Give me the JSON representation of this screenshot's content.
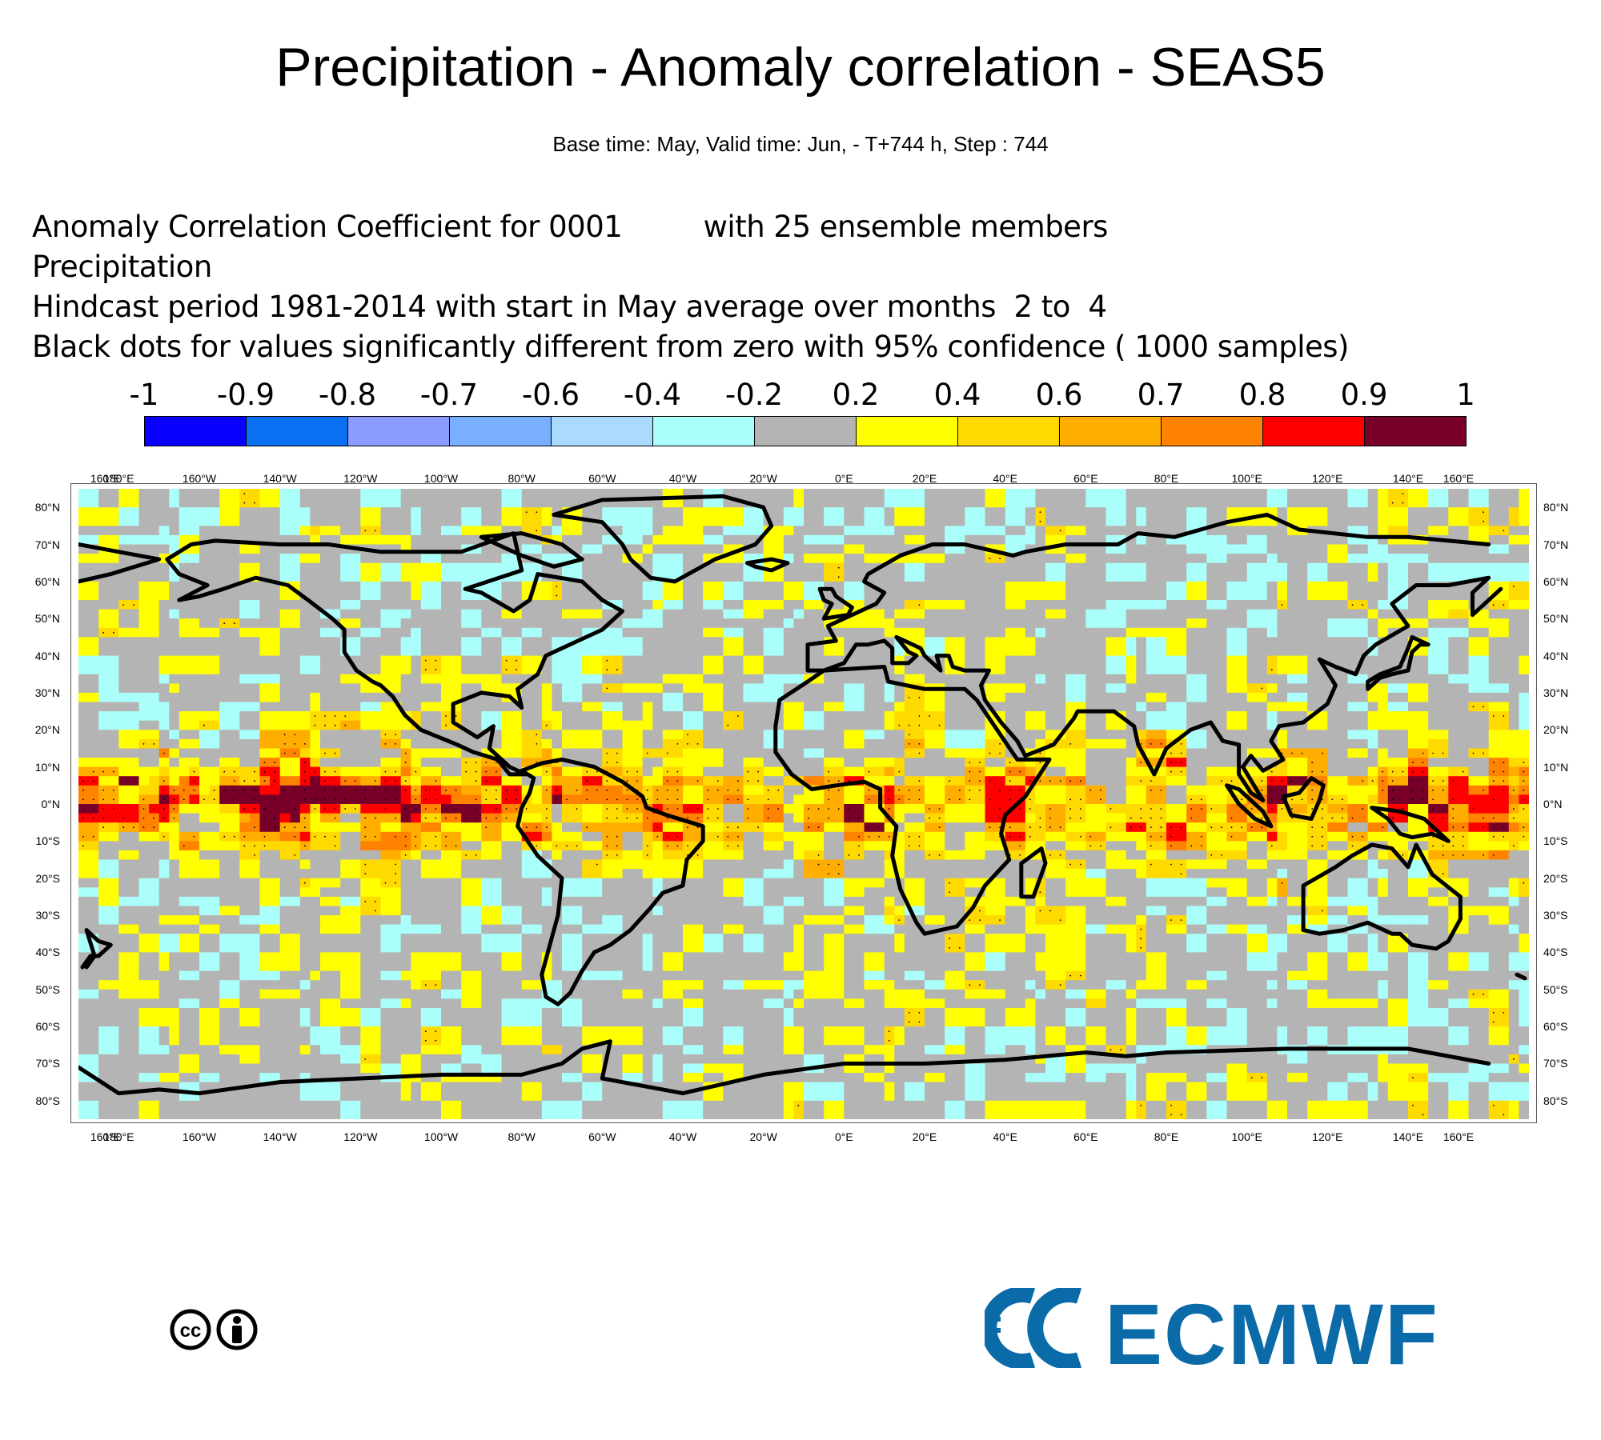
{
  "title": "Precipitation - Anomaly correlation - SEAS5",
  "subtitle": "Base time: May, Valid time: Jun, - T+744 h, Step : 744",
  "info_lines": [
    "Anomaly Correlation Coefficient for 0001         with 25 ensemble members",
    "Precipitation",
    "Hindcast period 1981-2014 with start in May average over months  2 to  4",
    "Black dots for values significantly different from zero with 95% confidence ( 1000 samples)"
  ],
  "colorbar": {
    "labels": [
      "-1",
      "-0.9",
      "-0.8",
      "-0.7",
      "-0.6",
      "-0.4",
      "-0.2",
      "0.2",
      "0.4",
      "0.6",
      "0.7",
      "0.8",
      "0.9",
      "1"
    ],
    "colors": [
      "#0a00ff",
      "#0a6ff0",
      "#8c9bff",
      "#78b0ff",
      "#aadbff",
      "#aafffa",
      "#b4b4b4",
      "#ffff00",
      "#ffda00",
      "#ffae00",
      "#ff8200",
      "#ff0000",
      "#780028"
    ]
  },
  "axes": {
    "lon_ticks": [
      "160°E",
      "180°E",
      "160°W",
      "140°W",
      "120°W",
      "100°W",
      "80°W",
      "60°W",
      "40°W",
      "20°W",
      "0°E",
      "20°E",
      "40°E",
      "60°E",
      "80°E",
      "100°E",
      "120°E",
      "140°E",
      "160°E"
    ],
    "lat_ticks": [
      "80°N",
      "70°N",
      "60°N",
      "50°N",
      "40°N",
      "30°N",
      "20°N",
      "10°N",
      "0°N",
      "10°S",
      "20°S",
      "30°S",
      "40°S",
      "50°S",
      "60°S",
      "70°S",
      "80°S"
    ]
  },
  "chart_data": {
    "type": "heatmap",
    "title": "Precipitation - Anomaly correlation - SEAS5",
    "variable": "Anomaly Correlation Coefficient",
    "x_range_longitude": [
      170,
      530
    ],
    "y_range_latitude": [
      -85,
      85
    ],
    "dominant_values": {
      "background": "0.2 to -0.2 (grey)",
      "tropics": "0.4 to 0.8",
      "east_central_pacific_equator": "0.8 to 1"
    }
  },
  "logos": {
    "cc": "cc-by-icon",
    "ecmwf": "ECMWF"
  }
}
